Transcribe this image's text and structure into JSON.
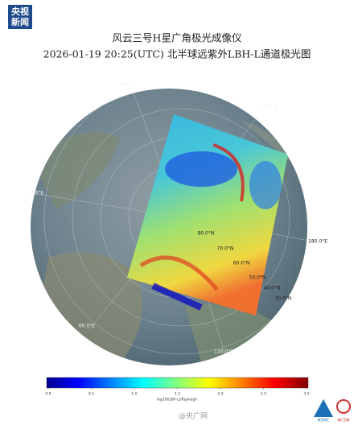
{
  "header": {
    "logo_line1": "央视",
    "logo_line2": "新闻"
  },
  "title": {
    "line1": "风云三号H星广角极光成像仪",
    "line2": "2026-01-19 20:25(UTC) 北半球远紫外LBH-L通道极光图"
  },
  "map": {
    "longitude_labels": [
      "60.0°E",
      "120.0°E",
      "0.0°E",
      "180.0°E",
      "60.0°E",
      "120.0°E"
    ],
    "latitude_labels": [
      "80.0°N",
      "70.0°N",
      "60.0°N",
      "50.0°N",
      "40.0°N",
      "30.0°N"
    ]
  },
  "colorbar": {
    "range": [
      0,
      3
    ],
    "ticks": [
      {
        "value": 0,
        "label": "0.0"
      },
      {
        "value": 0.5,
        "label": "0.5"
      },
      {
        "value": 1,
        "label": "1.0"
      },
      {
        "value": 1.5,
        "label": "1.5"
      },
      {
        "value": 2,
        "label": "2.0"
      },
      {
        "value": 2.5,
        "label": "2.5"
      },
      {
        "value": 3,
        "label": "3.0"
      }
    ],
    "label": "log10(LBH-L)/Rayleigh"
  },
  "footer": {
    "watermark": "@央广网",
    "logo_left": "NSMC",
    "logo_right": "NCSW"
  }
}
